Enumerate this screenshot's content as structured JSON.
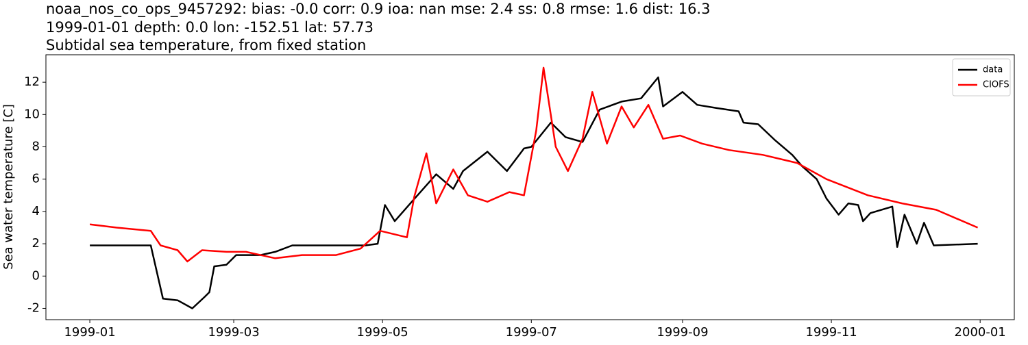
{
  "chart_data": {
    "type": "line",
    "title": [
      "noaa_nos_co_ops_9457292: bias: -0.0  corr: 0.9  ioa: nan  mse: 2.4  ss: 0.8  rmse: 1.6  dist: 16.3",
      "1999-01-01 depth: 0.0 lon: -152.51 lat: 57.73",
      "Subtidal sea temperature, from fixed station"
    ],
    "y_label": "Sea water temperature [C]",
    "xlim": [
      "1998-12-14",
      "2000-01-15"
    ],
    "xticks": [
      "1999-01",
      "1999-03",
      "1999-05",
      "1999-07",
      "1999-09",
      "1999-11",
      "2000-01"
    ],
    "ylim": [
      -2.7,
      13.7
    ],
    "yticks": [
      -2,
      0,
      2,
      4,
      6,
      8,
      10,
      12
    ],
    "legend": "upper right",
    "series": [
      {
        "name": "data",
        "color": "#000000",
        "x": [
          "1999-01-01",
          "1999-01-26",
          "1999-01-31",
          "1999-02-06",
          "1999-02-12",
          "1999-02-17",
          "1999-02-19",
          "1999-02-21",
          "1999-02-26",
          "1999-03-02",
          "1999-03-12",
          "1999-03-18",
          "1999-03-25",
          "1999-04-24",
          "1999-04-29",
          "1999-05-02",
          "1999-05-06",
          "1999-05-13",
          "1999-05-23",
          "1999-05-30",
          "1999-06-03",
          "1999-06-13",
          "1999-06-21",
          "1999-06-28",
          "1999-07-01",
          "1999-07-09",
          "1999-07-15",
          "1999-07-22",
          "1999-07-29",
          "1999-08-07",
          "1999-08-15",
          "1999-08-22",
          "1999-08-24",
          "1999-09-01",
          "1999-09-07",
          "1999-09-15",
          "1999-09-24",
          "1999-09-26",
          "1999-10-02",
          "1999-10-09",
          "1999-10-16",
          "1999-10-20",
          "1999-10-26",
          "1999-10-30",
          "1999-11-04",
          "1999-11-08",
          "1999-11-12",
          "1999-11-14",
          "1999-11-17",
          "1999-11-26",
          "1999-11-28",
          "1999-12-01",
          "1999-12-06",
          "1999-12-09",
          "1999-12-13",
          "1999-12-31"
        ],
        "values": [
          1.9,
          1.9,
          -1.4,
          -1.5,
          -2.0,
          -1.3,
          -1.0,
          0.6,
          0.7,
          1.3,
          1.3,
          1.5,
          1.9,
          1.9,
          2.0,
          4.4,
          3.4,
          4.6,
          6.3,
          5.4,
          6.5,
          7.7,
          6.5,
          7.9,
          8.0,
          9.5,
          8.6,
          8.3,
          10.3,
          10.8,
          11.0,
          12.3,
          10.5,
          11.4,
          10.6,
          10.4,
          10.2,
          9.5,
          9.4,
          8.4,
          7.5,
          6.8,
          6.0,
          4.8,
          3.8,
          4.5,
          4.4,
          3.4,
          3.9,
          4.3,
          1.8,
          3.8,
          2.0,
          3.3,
          1.9,
          2.0
        ]
      },
      {
        "name": "CIOFS",
        "color": "#ff0000",
        "x": [
          "1999-01-01",
          "1999-01-12",
          "1999-01-26",
          "1999-01-30",
          "1999-02-06",
          "1999-02-10",
          "1999-02-16",
          "1999-02-26",
          "1999-03-06",
          "1999-03-18",
          "1999-03-29",
          "1999-04-12",
          "1999-04-22",
          "1999-04-30",
          "1999-05-11",
          "1999-05-14",
          "1999-05-19",
          "1999-05-23",
          "1999-05-30",
          "1999-06-05",
          "1999-06-13",
          "1999-06-22",
          "1999-06-28",
          "1999-07-03",
          "1999-07-06",
          "1999-07-11",
          "1999-07-16",
          "1999-07-22",
          "1999-07-26",
          "1999-08-01",
          "1999-08-07",
          "1999-08-12",
          "1999-08-18",
          "1999-08-24",
          "1999-08-31",
          "1999-09-09",
          "1999-09-20",
          "1999-10-04",
          "1999-10-18",
          "1999-10-30",
          "1999-11-16",
          "1999-11-30",
          "1999-12-14",
          "1999-12-31"
        ],
        "values": [
          3.2,
          3.0,
          2.8,
          1.9,
          1.6,
          0.9,
          1.6,
          1.5,
          1.5,
          1.1,
          1.3,
          1.3,
          1.7,
          2.8,
          2.4,
          4.9,
          7.6,
          4.5,
          6.6,
          5.0,
          4.6,
          5.2,
          5.0,
          9.0,
          12.9,
          8.0,
          6.5,
          8.5,
          11.4,
          8.2,
          10.5,
          9.2,
          10.6,
          8.5,
          8.7,
          8.2,
          7.8,
          7.5,
          7.0,
          6.0,
          5.0,
          4.5,
          4.1,
          3.0
        ]
      }
    ]
  }
}
